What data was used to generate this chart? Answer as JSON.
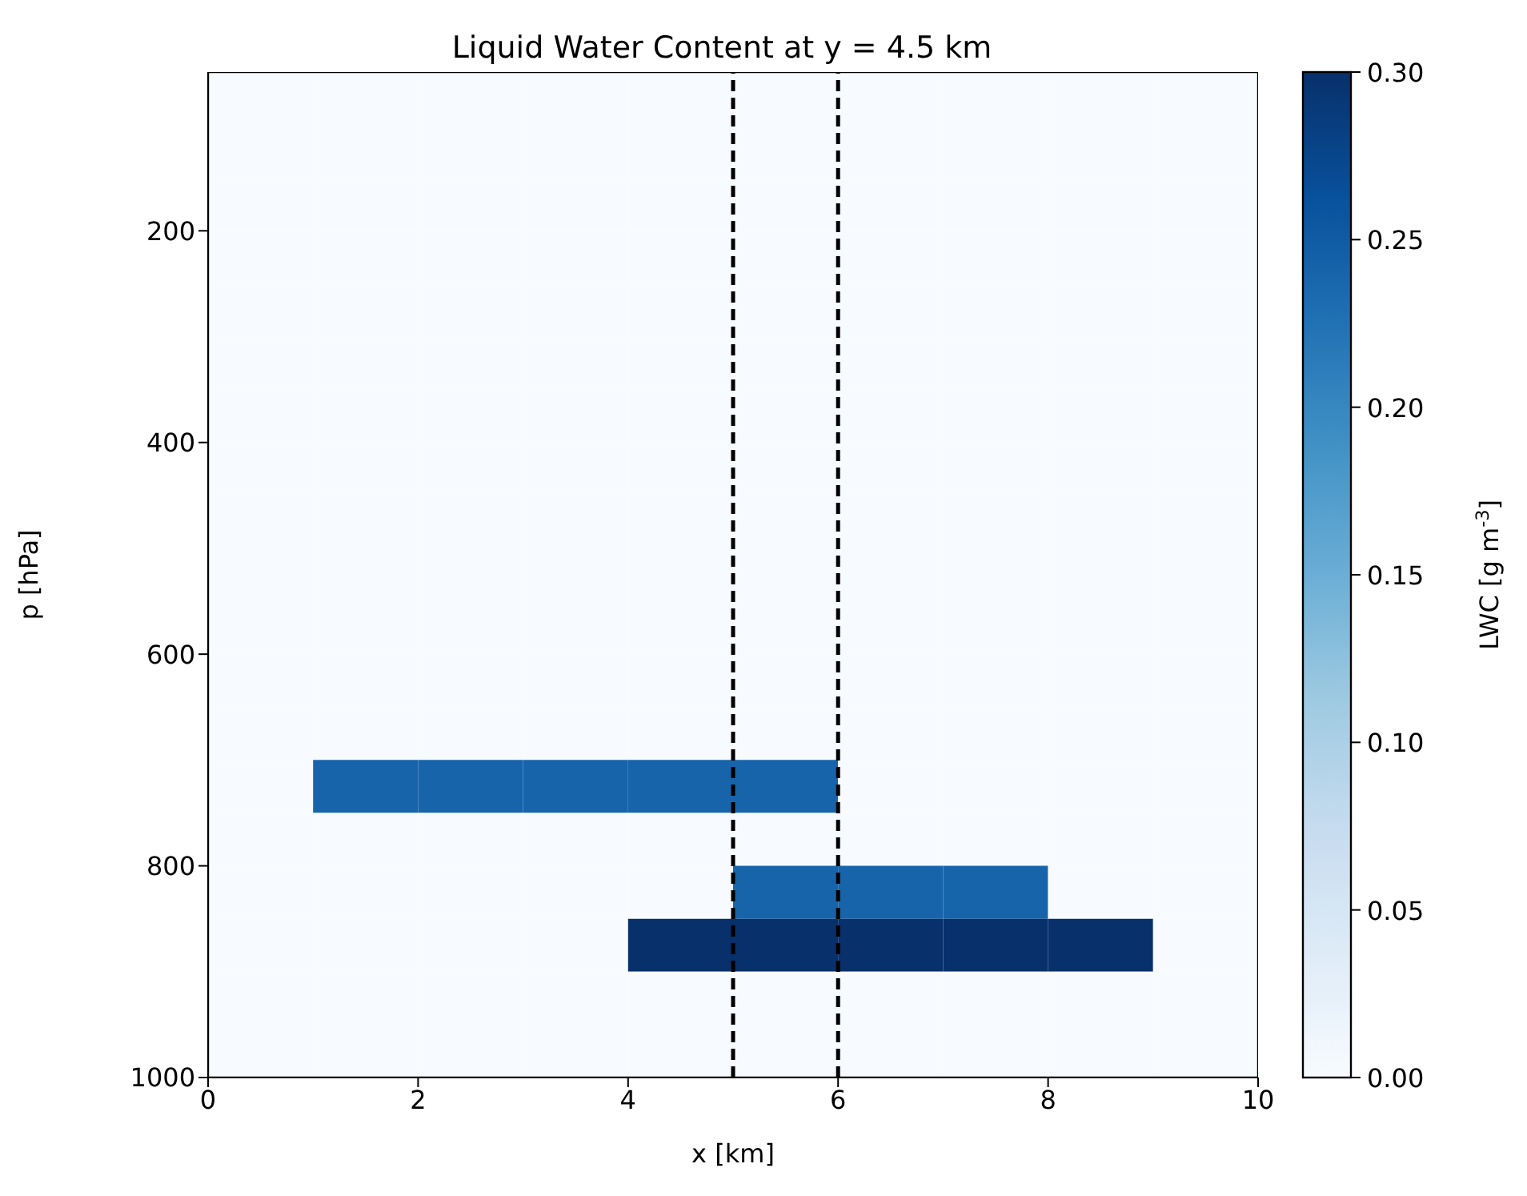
{
  "chart_data": {
    "type": "heatmap",
    "title": "Liquid Water Content at y = 4.5 km",
    "xlabel": "x [km]",
    "ylabel": "p [hPa]",
    "clabel": "LWC [g m$^{-3}$]",
    "x": [
      0.5,
      1.5,
      2.5,
      3.5,
      4.5,
      5.5,
      6.5,
      7.5,
      8.5,
      9.5
    ],
    "y": [
      75,
      125,
      175,
      225,
      275,
      325,
      375,
      425,
      475,
      525,
      575,
      625,
      675,
      725,
      775,
      825,
      875,
      925,
      975
    ],
    "cells": [
      [
        0,
        0,
        0,
        0,
        0,
        0,
        0,
        0,
        0,
        0
      ],
      [
        0,
        0,
        0,
        0,
        0,
        0,
        0,
        0,
        0,
        0
      ],
      [
        0,
        0,
        0,
        0,
        0,
        0,
        0,
        0,
        0,
        0
      ],
      [
        0,
        0,
        0,
        0,
        0,
        0,
        0,
        0,
        0,
        0
      ],
      [
        0,
        0,
        0,
        0,
        0,
        0,
        0,
        0,
        0,
        0
      ],
      [
        0,
        0,
        0,
        0,
        0,
        0,
        0,
        0,
        0,
        0
      ],
      [
        0,
        0,
        0,
        0,
        0,
        0,
        0,
        0,
        0,
        0
      ],
      [
        0,
        0,
        0,
        0,
        0,
        0,
        0,
        0,
        0,
        0
      ],
      [
        0,
        0,
        0,
        0,
        0,
        0,
        0,
        0,
        0,
        0
      ],
      [
        0,
        0,
        0,
        0,
        0,
        0,
        0,
        0,
        0,
        0
      ],
      [
        0,
        0,
        0,
        0,
        0,
        0,
        0,
        0,
        0,
        0
      ],
      [
        0,
        0,
        0,
        0,
        0,
        0,
        0,
        0,
        0,
        0
      ],
      [
        0,
        0,
        0,
        0,
        0,
        0,
        0,
        0,
        0,
        0
      ],
      [
        0,
        0.24,
        0.24,
        0.24,
        0.24,
        0.24,
        0,
        0,
        0,
        0
      ],
      [
        0,
        0,
        0,
        0,
        0,
        0,
        0,
        0,
        0,
        0
      ],
      [
        0,
        0,
        0,
        0,
        0,
        0.24,
        0.24,
        0.24,
        0,
        0
      ],
      [
        0,
        0,
        0,
        0,
        0.3,
        0.3,
        0.3,
        0.3,
        0.3,
        0
      ],
      [
        0,
        0,
        0,
        0,
        0,
        0,
        0,
        0,
        0,
        0
      ],
      [
        0,
        0,
        0,
        0,
        0,
        0,
        0,
        0,
        0,
        0
      ]
    ],
    "xlim": [
      0,
      10
    ],
    "xticks": [
      0,
      2,
      4,
      6,
      8,
      10
    ],
    "ylim": [
      1000,
      50
    ],
    "yticks": [
      200,
      400,
      600,
      800,
      1000
    ],
    "clim": [
      0,
      0.3
    ],
    "cticks": [
      {
        "value": 0,
        "label": "0.00"
      },
      {
        "value": 0.05,
        "label": "0.05"
      },
      {
        "value": 0.1,
        "label": "0.10"
      },
      {
        "value": 0.15,
        "label": "0.15"
      },
      {
        "value": 0.2,
        "label": "0.20"
      },
      {
        "value": 0.25,
        "label": "0.25"
      },
      {
        "value": 0.3,
        "label": "0.30"
      }
    ],
    "ref_lines": [
      {
        "axis": "x",
        "value": 5,
        "color": "#000000",
        "line_style": "dashed"
      },
      {
        "axis": "x",
        "value": 6,
        "color": "#000000",
        "line_style": "dashed"
      }
    ]
  }
}
